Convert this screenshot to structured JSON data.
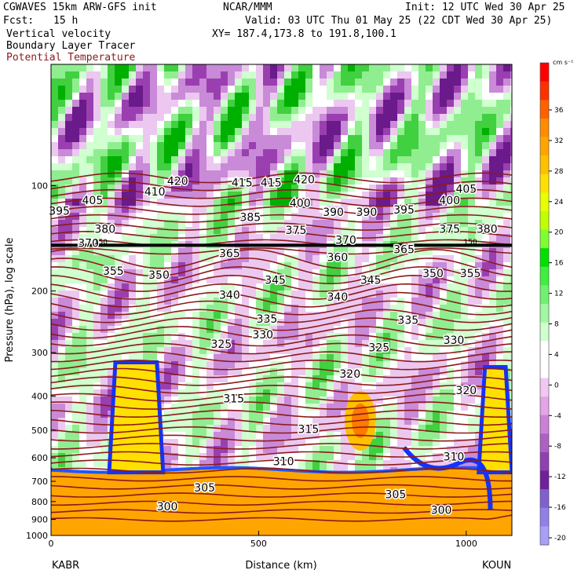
{
  "header": {
    "model": "CGWAVES 15km ARW-GFS init",
    "fcst_label": "Fcst:",
    "fcst_value": "15 h",
    "org": "NCAR/MMM",
    "init": "Init: 12 UTC Wed 30 Apr 25",
    "valid": "Valid: 03 UTC Thu 01 May 25 (22 CDT Wed 30 Apr 25)",
    "xy": "XY= 187.4,173.8 to 191.8,100.1",
    "field1": "Vertical velocity",
    "field2": "Boundary Layer Tracer",
    "field3": "Potential Temperature",
    "field3_color": "#8b1a1a"
  },
  "chart_data": {
    "type": "heatmap",
    "xlabel": "Distance (km)",
    "ylabel": "Pressure (hPa), log scale",
    "xlim": [
      0,
      1110
    ],
    "ylim": [
      1000,
      45
    ],
    "x_ticks": [
      0,
      500,
      1000
    ],
    "y_ticks": [
      100,
      200,
      300,
      400,
      500,
      600,
      700,
      800,
      900,
      1000
    ],
    "x_end_labels": [
      "KABR",
      "KOUN"
    ],
    "colorbar": {
      "unit": "cm s⁻¹",
      "ticks": [
        "36",
        "32",
        "28",
        "24",
        "20",
        "16",
        "12",
        "8",
        "4",
        "0",
        "-4",
        "-8",
        "-12",
        "-16",
        "-20"
      ],
      "colors": [
        "#ff0000",
        "#ff3000",
        "#ff6000",
        "#ff8c00",
        "#ffa500",
        "#ffc000",
        "#ffe000",
        "#e8ff00",
        "#bfff00",
        "#80ff30",
        "#00e000",
        "#40ee40",
        "#70f070",
        "#a0f8a0",
        "#d0ffd0",
        "#ffffff",
        "#ffffff",
        "#f2c8f2",
        "#e4a4e8",
        "#cc80d8",
        "#b060c4",
        "#9040b0",
        "#70209a",
        "#8060d0",
        "#9080e8",
        "#a8a0f8"
      ]
    },
    "theta_labels": [
      {
        "text": "420",
        "x": 305,
        "p": 97
      },
      {
        "text": "415",
        "x": 460,
        "p": 98
      },
      {
        "text": "415",
        "x": 530,
        "p": 98
      },
      {
        "text": "420",
        "x": 610,
        "p": 96
      },
      {
        "text": "410",
        "x": 250,
        "p": 104
      },
      {
        "text": "405",
        "x": 100,
        "p": 110
      },
      {
        "text": "405",
        "x": 1000,
        "p": 102
      },
      {
        "text": "400",
        "x": 600,
        "p": 112
      },
      {
        "text": "400",
        "x": 960,
        "p": 110
      },
      {
        "text": "395",
        "x": 20,
        "p": 118
      },
      {
        "text": "395",
        "x": 850,
        "p": 117
      },
      {
        "text": "385",
        "x": 480,
        "p": 123
      },
      {
        "text": "390",
        "x": 680,
        "p": 119
      },
      {
        "text": "390",
        "x": 760,
        "p": 119
      },
      {
        "text": "380",
        "x": 130,
        "p": 133
      },
      {
        "text": "380",
        "x": 1050,
        "p": 133
      },
      {
        "text": "375",
        "x": 590,
        "p": 134
      },
      {
        "text": "375",
        "x": 960,
        "p": 133
      },
      {
        "text": "370",
        "x": 90,
        "p": 146
      },
      {
        "text": "370",
        "x": 710,
        "p": 143
      },
      {
        "text": "365",
        "x": 430,
        "p": 156
      },
      {
        "text": "365",
        "x": 850,
        "p": 152
      },
      {
        "text": "360",
        "x": 690,
        "p": 160
      },
      {
        "text": "355",
        "x": 150,
        "p": 175
      },
      {
        "text": "350",
        "x": 260,
        "p": 180
      },
      {
        "text": "345",
        "x": 540,
        "p": 186
      },
      {
        "text": "345",
        "x": 770,
        "p": 186
      },
      {
        "text": "350",
        "x": 920,
        "p": 178
      },
      {
        "text": "355",
        "x": 1010,
        "p": 178
      },
      {
        "text": "340",
        "x": 430,
        "p": 205
      },
      {
        "text": "340",
        "x": 690,
        "p": 208
      },
      {
        "text": "335",
        "x": 520,
        "p": 240
      },
      {
        "text": "335",
        "x": 860,
        "p": 242
      },
      {
        "text": "330",
        "x": 510,
        "p": 266
      },
      {
        "text": "330",
        "x": 970,
        "p": 276
      },
      {
        "text": "325",
        "x": 410,
        "p": 283
      },
      {
        "text": "325",
        "x": 790,
        "p": 290
      },
      {
        "text": "320",
        "x": 720,
        "p": 345
      },
      {
        "text": "320",
        "x": 1000,
        "p": 384
      },
      {
        "text": "315",
        "x": 440,
        "p": 406
      },
      {
        "text": "315",
        "x": 620,
        "p": 497
      },
      {
        "text": "310",
        "x": 560,
        "p": 613
      },
      {
        "text": "310",
        "x": 970,
        "p": 595
      },
      {
        "text": "305",
        "x": 370,
        "p": 730
      },
      {
        "text": "305",
        "x": 830,
        "p": 762
      },
      {
        "text": "300",
        "x": 280,
        "p": 825
      },
      {
        "text": "300",
        "x": 940,
        "p": 845
      }
    ],
    "tropopause_labels": [
      {
        "text": "150",
        "x": 120,
        "p": 144
      },
      {
        "text": "150",
        "x": 1010,
        "p": 144
      }
    ]
  }
}
